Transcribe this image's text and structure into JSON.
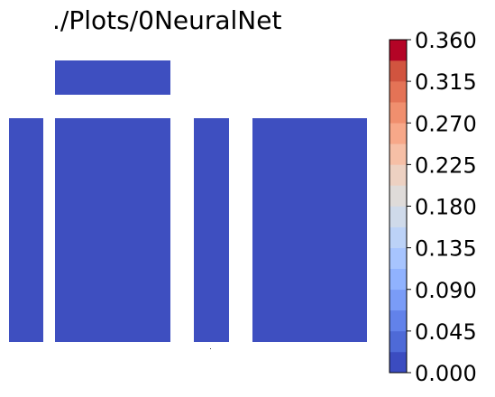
{
  "chart_data": {
    "type": "heatmap",
    "title": "./Plots/0NeuralNet",
    "colormap": "coolwarm",
    "colorbar": {
      "min": 0.0,
      "max": 0.36,
      "levels": 16,
      "ticks": [
        "0.000",
        "0.045",
        "0.090",
        "0.135",
        "0.180",
        "0.225",
        "0.270",
        "0.315",
        "0.360"
      ]
    },
    "cells": [
      {
        "row": "top",
        "col": "block-2",
        "value": 0.0
      },
      {
        "row": "main",
        "col": "block-1",
        "value": 0.0
      },
      {
        "row": "main",
        "col": "block-2",
        "value": 0.0
      },
      {
        "row": "main",
        "col": "block-3",
        "value": 0.0
      },
      {
        "row": "main",
        "col": "block-4",
        "value": 0.0
      }
    ],
    "colors": {
      "band_colors": [
        "#3b4cc0",
        "#4e6ad7",
        "#6282ea",
        "#7a9cf7",
        "#90b2fe",
        "#a7c4fe",
        "#bcd2f7",
        "#cfdaea",
        "#dfdbd9",
        "#edd1c2",
        "#f6bfa6",
        "#f7a889",
        "#f08f6e",
        "#e47356",
        "#d1543f",
        "#b40426"
      ],
      "cell_fill": "#3e4fc0"
    }
  }
}
